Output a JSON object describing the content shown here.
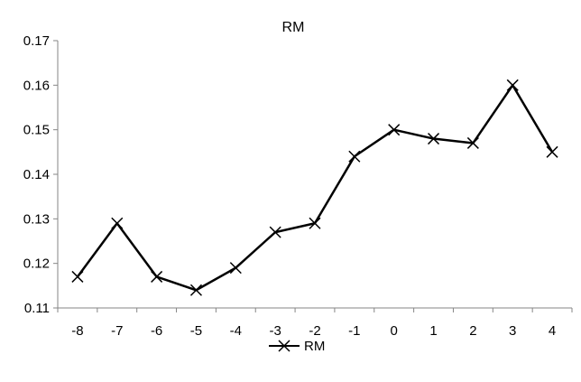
{
  "chart_data": {
    "type": "line",
    "title": "RM",
    "xlabel": "",
    "ylabel": "",
    "x": [
      "-8",
      "-7",
      "-6",
      "-5",
      "-4",
      "-3",
      "-2",
      "-1",
      "0",
      "1",
      "2",
      "3",
      "4"
    ],
    "series": [
      {
        "name": "RM",
        "color": "#000000",
        "marker": "x",
        "values": [
          0.117,
          0.129,
          0.117,
          0.114,
          0.119,
          0.127,
          0.129,
          0.144,
          0.15,
          0.148,
          0.147,
          0.16,
          0.145
        ]
      }
    ],
    "ylim": [
      0.11,
      0.17
    ],
    "yticks": [
      "0.11",
      "0.12",
      "0.13",
      "0.14",
      "0.15",
      "0.16",
      "0.17"
    ],
    "grid": false,
    "legend_position": "bottom"
  }
}
